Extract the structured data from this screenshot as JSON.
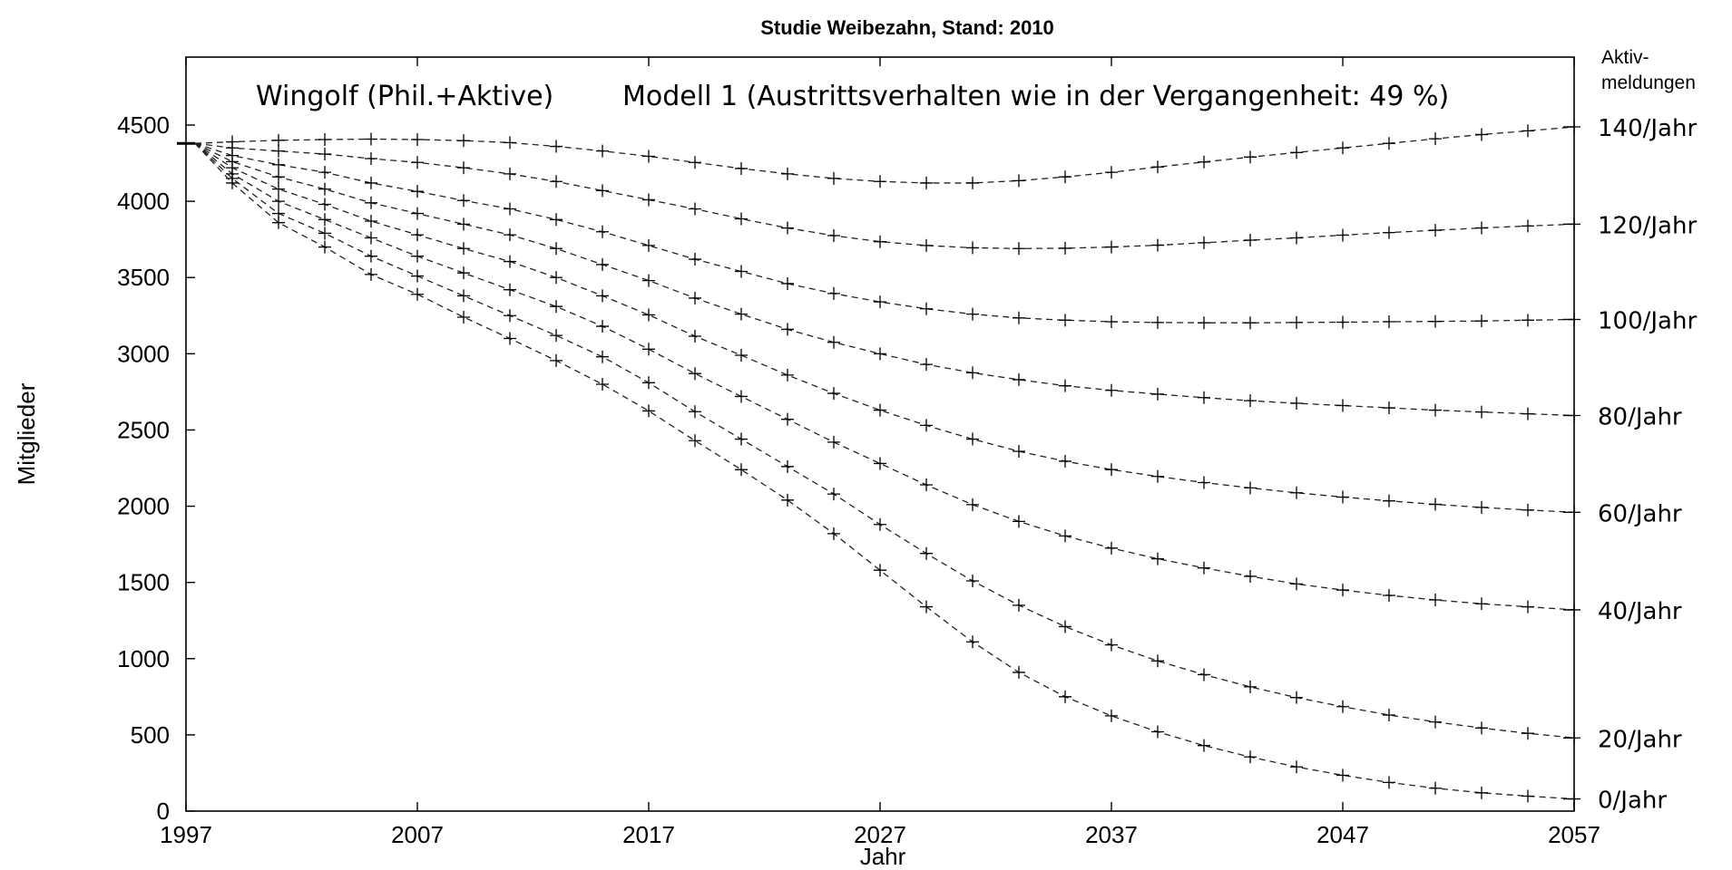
{
  "chart_data": {
    "type": "line",
    "title": "Studie Weibezahn, Stand: 2010",
    "annotation_left": "Wingolf (Phil.+Aktive)",
    "annotation_right": "Modell 1 (Austrittsverhalten wie in der Vergangenheit: 49 %)",
    "xlabel": "Jahr",
    "ylabel": "Mitglieder",
    "right_axis_title_line1": "Aktiv-",
    "right_axis_title_line2": "meldungen",
    "xlim": [
      1997,
      2057
    ],
    "ylim": [
      0,
      4800
    ],
    "x_ticks": [
      "1997",
      "2007",
      "2017",
      "2027",
      "2037",
      "2047",
      "2057"
    ],
    "y_ticks": [
      "0",
      "500",
      "1000",
      "1500",
      "2000",
      "2500",
      "3000",
      "3500",
      "4000",
      "4500"
    ],
    "grid": false,
    "start": {
      "x": 1997,
      "y": 4380
    },
    "x": [
      1999,
      2001,
      2003,
      2005,
      2007,
      2009,
      2011,
      2013,
      2015,
      2017,
      2019,
      2021,
      2023,
      2025,
      2027,
      2029,
      2031,
      2033,
      2035,
      2037,
      2039,
      2041,
      2043,
      2045,
      2047,
      2049,
      2051,
      2053,
      2055,
      2057
    ],
    "series": [
      {
        "name": "140/Jahr",
        "values": [
          4390,
          4400,
          4405,
          4408,
          4405,
          4398,
          4385,
          4360,
          4330,
          4295,
          4255,
          4215,
          4180,
          4150,
          4130,
          4120,
          4120,
          4135,
          4160,
          4190,
          4225,
          4258,
          4290,
          4320,
          4350,
          4380,
          4410,
          4438,
          4462,
          4488
        ]
      },
      {
        "name": "120/Jahr",
        "values": [
          4350,
          4330,
          4310,
          4280,
          4255,
          4220,
          4180,
          4130,
          4070,
          4010,
          3950,
          3885,
          3825,
          3775,
          3735,
          3710,
          3695,
          3690,
          3692,
          3700,
          3712,
          3728,
          3745,
          3760,
          3778,
          3795,
          3810,
          3825,
          3838,
          3850
        ]
      },
      {
        "name": "100/Jahr",
        "values": [
          4300,
          4240,
          4190,
          4120,
          4065,
          4005,
          3950,
          3880,
          3800,
          3710,
          3620,
          3540,
          3460,
          3395,
          3340,
          3295,
          3260,
          3235,
          3220,
          3210,
          3205,
          3203,
          3203,
          3205,
          3207,
          3210,
          3212,
          3215,
          3220,
          3225
        ]
      },
      {
        "name": "80/Jahr",
        "values": [
          4260,
          4160,
          4080,
          3990,
          3920,
          3850,
          3780,
          3690,
          3585,
          3480,
          3365,
          3260,
          3160,
          3075,
          3000,
          2930,
          2875,
          2830,
          2790,
          2760,
          2735,
          2712,
          2692,
          2675,
          2660,
          2645,
          2630,
          2618,
          2606,
          2595
        ]
      },
      {
        "name": "60/Jahr",
        "values": [
          4220,
          4080,
          3980,
          3870,
          3780,
          3690,
          3605,
          3500,
          3380,
          3255,
          3115,
          2990,
          2860,
          2740,
          2630,
          2530,
          2440,
          2360,
          2295,
          2240,
          2195,
          2155,
          2120,
          2088,
          2060,
          2035,
          2012,
          1992,
          1975,
          1960
        ]
      },
      {
        "name": "40/Jahr",
        "values": [
          4180,
          4000,
          3880,
          3760,
          3640,
          3530,
          3420,
          3310,
          3180,
          3030,
          2870,
          2720,
          2570,
          2420,
          2280,
          2140,
          2010,
          1900,
          1805,
          1725,
          1655,
          1595,
          1540,
          1490,
          1450,
          1415,
          1385,
          1360,
          1340,
          1320
        ]
      },
      {
        "name": "20/Jahr",
        "values": [
          4150,
          3920,
          3790,
          3640,
          3510,
          3380,
          3250,
          3120,
          2980,
          2810,
          2620,
          2440,
          2260,
          2080,
          1880,
          1690,
          1510,
          1350,
          1210,
          1090,
          985,
          895,
          815,
          745,
          685,
          630,
          585,
          545,
          510,
          480
        ]
      },
      {
        "name": "0/Jahr",
        "values": [
          4120,
          3860,
          3700,
          3520,
          3390,
          3240,
          3100,
          2955,
          2800,
          2625,
          2430,
          2240,
          2040,
          1820,
          1580,
          1340,
          1110,
          910,
          750,
          625,
          520,
          430,
          355,
          290,
          235,
          188,
          150,
          120,
          98,
          80
        ]
      }
    ]
  }
}
